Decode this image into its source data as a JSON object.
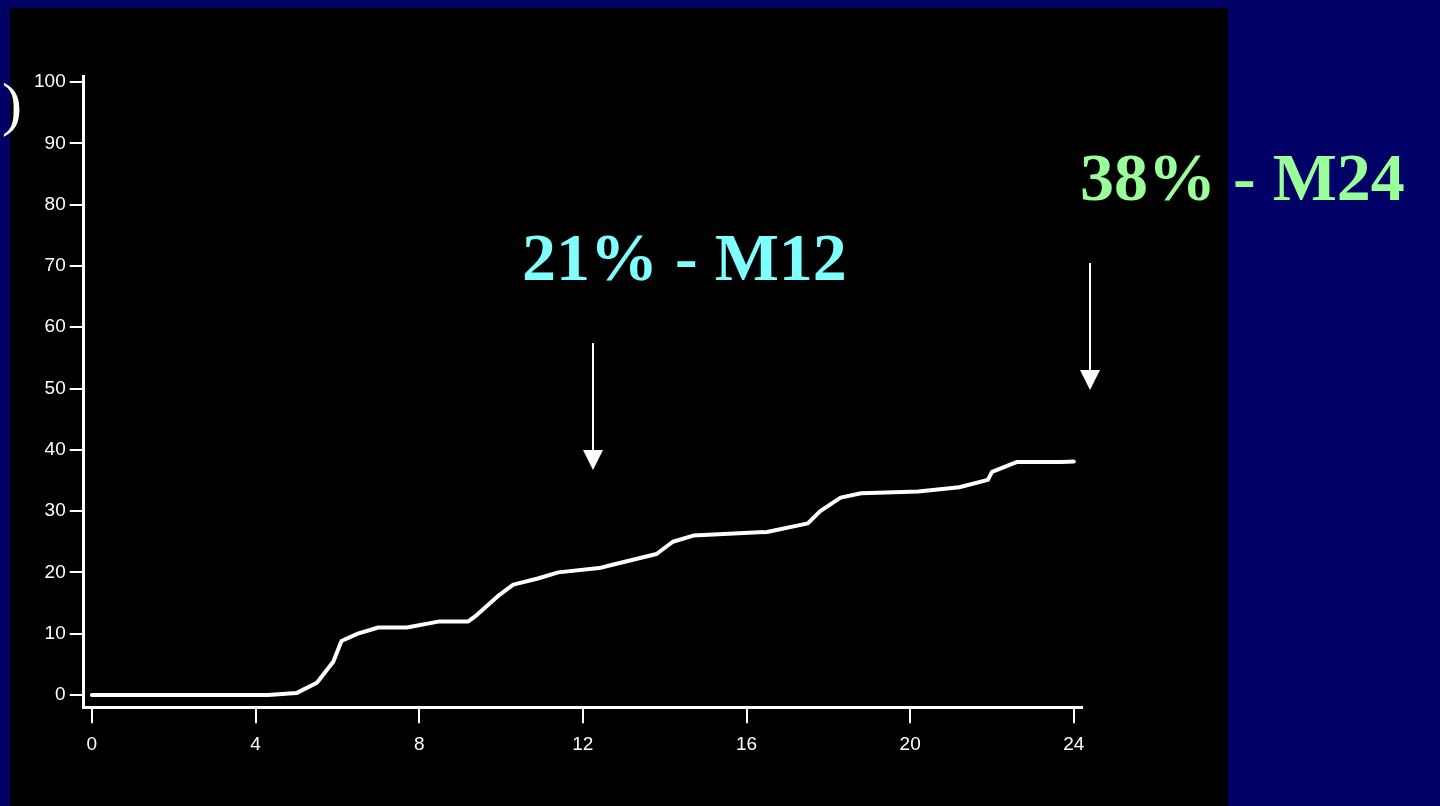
{
  "chart_data": {
    "type": "line",
    "x": [
      0,
      4.3,
      5.0,
      5.5,
      5.9,
      6.1,
      6.5,
      7,
      7.7,
      8.5,
      9.2,
      9.4,
      9.9,
      10.3,
      10.9,
      11.4,
      12.4,
      12.7,
      13.8,
      14.2,
      14.7,
      16.5,
      17.5,
      17.8,
      18.3,
      18.8,
      20.2,
      21.2,
      21.9,
      22.0,
      22.6,
      23.7,
      24
    ],
    "series": [
      {
        "color": "#ffffff",
        "values": [
          0,
          0,
          0.3,
          2,
          5.4,
          8.8,
          10,
          11,
          11,
          12,
          12,
          13,
          16,
          18,
          19,
          20,
          20.7,
          21.2,
          23,
          25,
          26,
          26.6,
          28,
          30,
          32.2,
          32.9,
          33.2,
          33.9,
          35.1,
          36.4,
          38,
          38,
          38.1
        ]
      }
    ],
    "xlim": [
      -0.2,
      24.2
    ],
    "ylim": [
      -2,
      101
    ],
    "xticks": [
      0,
      4,
      8,
      12,
      16,
      20,
      24
    ],
    "yticks": [
      0,
      10,
      20,
      30,
      40,
      50,
      60,
      70,
      80,
      90,
      100
    ],
    "grid": false,
    "legend": false,
    "marker": "none",
    "line_style": "solid",
    "annotations": [
      ")",
      "21% - M12",
      "38% - M24"
    ]
  }
}
